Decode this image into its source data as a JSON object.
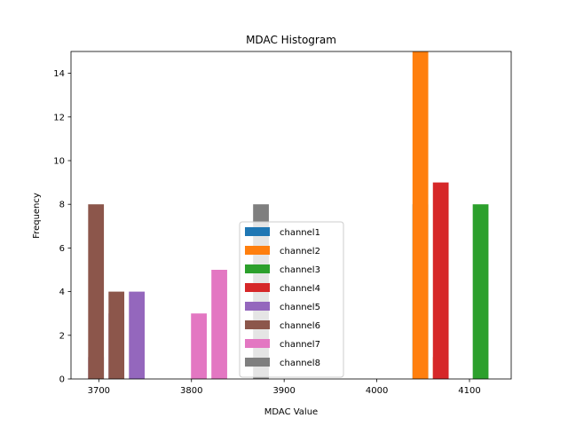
{
  "chart_data": {
    "type": "bar",
    "title": "MDAC Histogram",
    "xlabel": "MDAC Value",
    "ylabel": "Frequency",
    "xlim": [
      3670,
      4145
    ],
    "ylim": [
      0,
      15
    ],
    "xticks": [
      3700,
      3800,
      3900,
      4000,
      4100
    ],
    "yticks": [
      0,
      2,
      4,
      6,
      8,
      10,
      12,
      14
    ],
    "bar_width": 17,
    "stacked": "overlapping",
    "legend_position": "lower-center",
    "series": [
      {
        "name": "channel1",
        "color": "#1f77b4",
        "bars": [
          {
            "x": 4047,
            "value": 8
          }
        ]
      },
      {
        "name": "channel2",
        "color": "#ff7f0e",
        "bars": [
          {
            "x": 4047,
            "value": 15
          },
          {
            "x": 4069,
            "value": 1
          }
        ]
      },
      {
        "name": "channel3",
        "color": "#2ca02c",
        "bars": [
          {
            "x": 4112,
            "value": 8
          }
        ]
      },
      {
        "name": "channel4",
        "color": "#d62728",
        "bars": [
          {
            "x": 4069,
            "value": 9
          }
        ]
      },
      {
        "name": "channel5",
        "color": "#9467bd",
        "bars": [
          {
            "x": 3697,
            "value": 1
          },
          {
            "x": 3719,
            "value": 3
          },
          {
            "x": 3741,
            "value": 4
          }
        ]
      },
      {
        "name": "channel6",
        "color": "#8c564b",
        "bars": [
          {
            "x": 3697,
            "value": 8
          },
          {
            "x": 3719,
            "value": 4
          }
        ]
      },
      {
        "name": "channel7",
        "color": "#e377c2",
        "bars": [
          {
            "x": 3808,
            "value": 3
          },
          {
            "x": 3830,
            "value": 5
          }
        ]
      },
      {
        "name": "channel8",
        "color": "#7f7f7f",
        "bars": [
          {
            "x": 3875,
            "value": 8
          }
        ]
      }
    ]
  }
}
